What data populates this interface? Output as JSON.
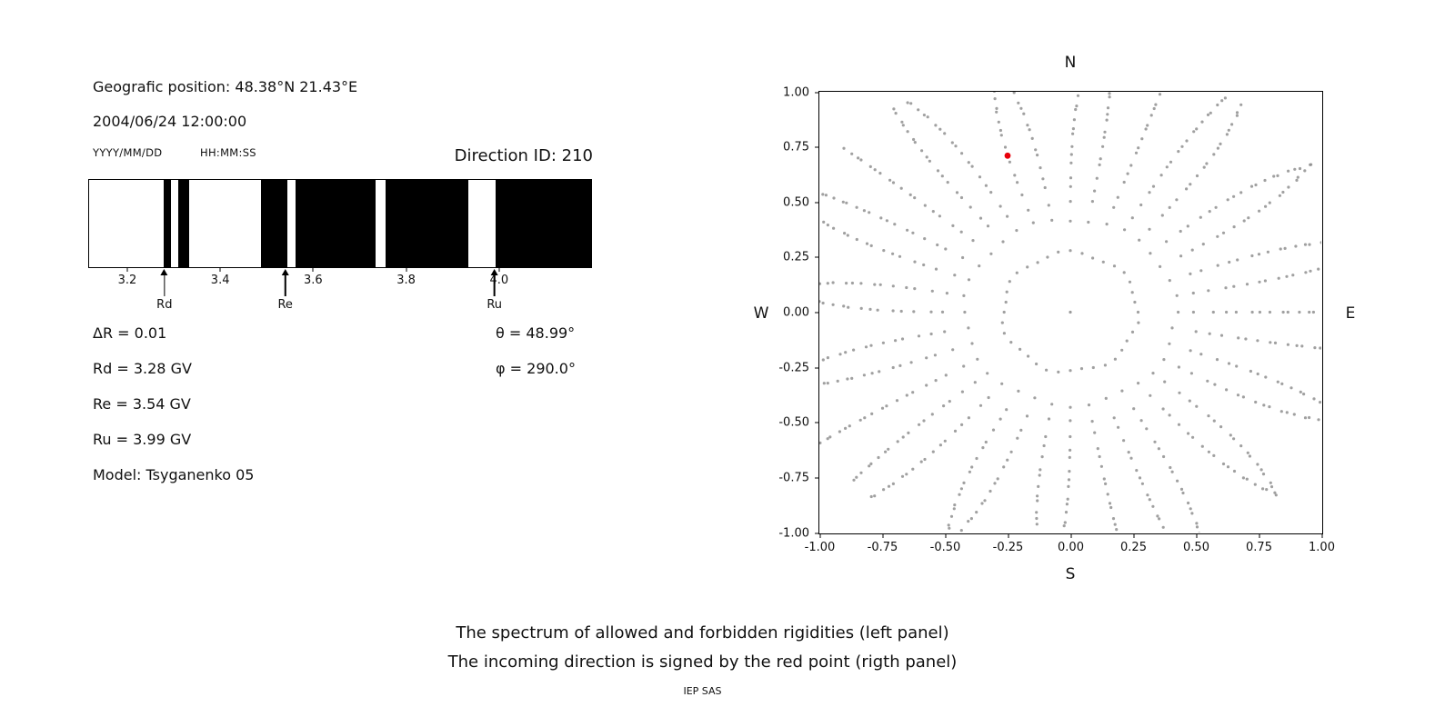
{
  "header": {
    "geo_position": "Geografic position: 48.38°N 21.43°E",
    "datetime": "2004/06/24 12:00:00",
    "date_format": "YYYY/MM/DD",
    "time_format": "HH:MM:SS",
    "direction_id": "Direction ID: 210"
  },
  "info": {
    "delta_r": "ΔR = 0.01",
    "rd": "Rd = 3.28 GV",
    "re": "Re = 3.54 GV",
    "ru": "Ru = 3.99 GV",
    "model": "Model: Tsyganenko 05",
    "theta": "θ = 48.99°",
    "phi": "φ = 290.0°"
  },
  "caption": {
    "line1": "The spectrum of allowed and forbidden rigidities (left panel)",
    "line2": "The incoming direction is signed by the red point (rigth panel)",
    "credit": "IEP SAS"
  },
  "chart_data": [
    {
      "type": "bar",
      "subtype": "rigidity-spectrum",
      "description": "Allowed (white) and forbidden (black) rigidity bands in GV",
      "x_range": [
        3.116,
        4.2
      ],
      "x_ticks": [
        3.2,
        3.4,
        3.6,
        3.8,
        4.0
      ],
      "x_tick_labels": [
        "3.2",
        "3.4",
        "3.6",
        "3.8",
        "4.0"
      ],
      "allowed_color": "#ffffff",
      "forbidden_color": "#000000",
      "forbidden_bands": [
        [
          3.278,
          3.292
        ],
        [
          3.308,
          3.332
        ],
        [
          3.488,
          3.545
        ],
        [
          3.562,
          3.734
        ],
        [
          3.756,
          3.934
        ],
        [
          3.994,
          4.2
        ]
      ],
      "markers": [
        {
          "label": "Rd",
          "x": 3.28
        },
        {
          "label": "Re",
          "x": 3.54
        },
        {
          "label": "Ru",
          "x": 3.99
        }
      ]
    },
    {
      "type": "scatter",
      "subtype": "incoming-direction-sky-map",
      "xlim": [
        -1.0,
        1.0
      ],
      "ylim": [
        -1.0,
        1.0
      ],
      "ticks": [
        -1.0,
        -0.75,
        -0.5,
        -0.25,
        0.0,
        0.25,
        0.5,
        0.75,
        1.0
      ],
      "tick_labels": [
        "-1.00",
        "-0.75",
        "-0.50",
        "-0.25",
        "0.00",
        "0.25",
        "0.50",
        "0.75",
        "1.00"
      ],
      "grid": false,
      "compass": {
        "north": "N",
        "south": "S",
        "east": "E",
        "west": "W"
      },
      "dots": {
        "color": "#8f8f8f",
        "spoke_count": 36,
        "spoke_angle_step_deg": 10,
        "r_inner": 0.27,
        "r_outer": 1.16,
        "dots_per_spoke": 20,
        "center_dot": true
      },
      "red_point": {
        "x": -0.25,
        "y": 0.71,
        "color": "#e8000b",
        "label": "incoming direction"
      }
    }
  ]
}
